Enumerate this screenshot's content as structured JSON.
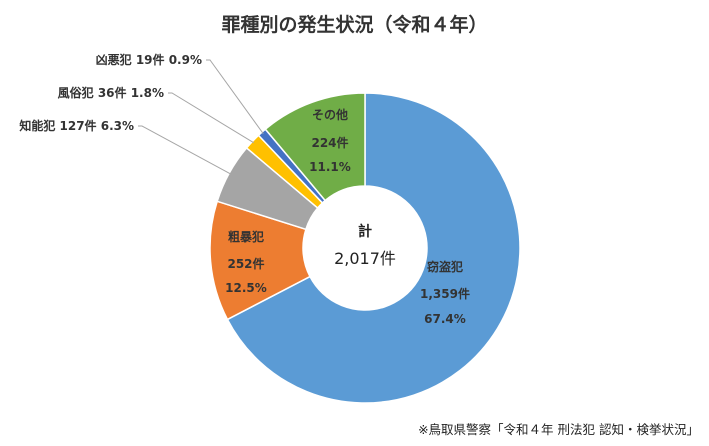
{
  "chart_data": {
    "type": "pie",
    "donut": true,
    "title": "罪種別の発生状況（令和４年）",
    "total": {
      "label": "計",
      "value": "2,017件"
    },
    "start": "12 o'clock, clockwise",
    "slices": [
      {
        "name": "窃盗犯",
        "count": 1359,
        "count_label": "1,359件",
        "percent": 67.4,
        "percent_label": "67.4%",
        "color": "#5B9BD5"
      },
      {
        "name": "粗暴犯",
        "count": 252,
        "count_label": "252件",
        "percent": 12.5,
        "percent_label": "12.5%",
        "color": "#ED7D31"
      },
      {
        "name": "知能犯",
        "count": 127,
        "count_label": "127件",
        "percent": 6.3,
        "percent_label": "6.3%",
        "color": "#A5A5A5",
        "label_text": "知能犯 127件 6.3%"
      },
      {
        "name": "風俗犯",
        "count": 36,
        "count_label": "36件",
        "percent": 1.8,
        "percent_label": "1.8%",
        "color": "#FFC000",
        "label_text": "風俗犯 36件 1.8%"
      },
      {
        "name": "凶悪犯",
        "count": 19,
        "count_label": "19件",
        "percent": 0.9,
        "percent_label": "0.9%",
        "color": "#4472C4",
        "label_text": "凶悪犯 19件 0.9%"
      },
      {
        "name": "その他",
        "count": 224,
        "count_label": "224件",
        "percent": 11.1,
        "percent_label": "11.1%",
        "color": "#70AD47"
      }
    ]
  },
  "source_note": "※鳥取県警察「令和４年 刑法犯 認知・検挙状況」"
}
